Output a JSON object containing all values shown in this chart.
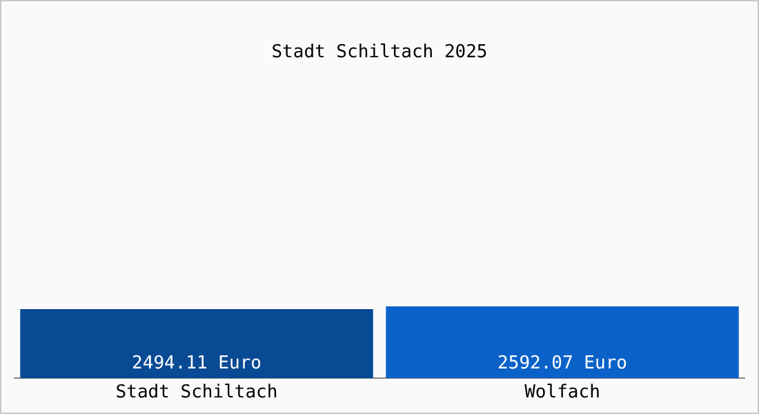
{
  "chart_data": {
    "type": "bar",
    "title": "Stadt Schiltach 2025",
    "categories": [
      "Stadt Schiltach",
      "Wolfach"
    ],
    "values": [
      2494.11,
      2592.07
    ],
    "colors": [
      "#084a94",
      "#0a62c8"
    ],
    "value_labels": [
      "2494.11 Euro",
      "2592.07 Euro"
    ],
    "tick_labels": "x",
    "grid": false
  }
}
